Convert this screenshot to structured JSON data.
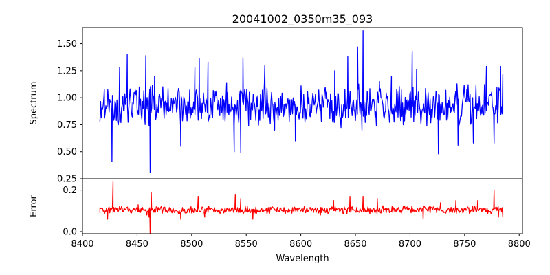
{
  "chart_data": {
    "type": "line",
    "title": "20041002_0350m35_093",
    "xlabel": "Wavelength",
    "xlim": [
      8400,
      8803
    ],
    "xticks": [
      8400,
      8450,
      8500,
      8550,
      8600,
      8650,
      8700,
      8750,
      8800
    ],
    "x_range": [
      8416,
      8785
    ],
    "panels": [
      {
        "name": "spectrum",
        "ylabel": "Spectrum",
        "ylim": [
          0.25,
          1.65
        ],
        "yticks": [
          0.25,
          0.5,
          0.75,
          1.0,
          1.25,
          1.5
        ],
        "ytick_labels": [
          "0.25",
          "0.50",
          "0.75",
          "1.00",
          "1.25",
          "1.50"
        ],
        "color": "#0000ff",
        "features": [
          {
            "x": 8416,
            "y": 0.79
          },
          {
            "x": 8420,
            "y": 1.08
          },
          {
            "x": 8427,
            "y": 0.41
          },
          {
            "x": 8434,
            "y": 1.28
          },
          {
            "x": 8441,
            "y": 1.4
          },
          {
            "x": 8446,
            "y": 0.82
          },
          {
            "x": 8458,
            "y": 1.39
          },
          {
            "x": 8461,
            "y": 0.74
          },
          {
            "x": 8462,
            "y": 0.31
          },
          {
            "x": 8466,
            "y": 1.2
          },
          {
            "x": 8490,
            "y": 0.55
          },
          {
            "x": 8503,
            "y": 1.28
          },
          {
            "x": 8507,
            "y": 1.36
          },
          {
            "x": 8515,
            "y": 1.33
          },
          {
            "x": 8532,
            "y": 1.14
          },
          {
            "x": 8539,
            "y": 0.5
          },
          {
            "x": 8545,
            "y": 0.49
          },
          {
            "x": 8547,
            "y": 1.37
          },
          {
            "x": 8567,
            "y": 1.3
          },
          {
            "x": 8576,
            "y": 0.7
          },
          {
            "x": 8595,
            "y": 0.6
          },
          {
            "x": 8631,
            "y": 1.25
          },
          {
            "x": 8643,
            "y": 1.38
          },
          {
            "x": 8652,
            "y": 1.47
          },
          {
            "x": 8656,
            "y": 0.7
          },
          {
            "x": 8657,
            "y": 1.62
          },
          {
            "x": 8672,
            "y": 1.15
          },
          {
            "x": 8683,
            "y": 1.2
          },
          {
            "x": 8702,
            "y": 1.43
          },
          {
            "x": 8706,
            "y": 1.26
          },
          {
            "x": 8726,
            "y": 0.48
          },
          {
            "x": 8744,
            "y": 0.56
          },
          {
            "x": 8758,
            "y": 0.58
          },
          {
            "x": 8770,
            "y": 1.29
          },
          {
            "x": 8777,
            "y": 0.58
          },
          {
            "x": 8783,
            "y": 1.29
          },
          {
            "x": 8785,
            "y": 1.22
          }
        ]
      },
      {
        "name": "error",
        "ylabel": "Error",
        "ylim": [
          -0.01,
          0.255
        ],
        "yticks": [
          0.0,
          0.2
        ],
        "ytick_labels": [
          "0.0",
          "0.2"
        ],
        "color": "#ff0000",
        "features": [
          {
            "x": 8416,
            "y": 0.09
          },
          {
            "x": 8423,
            "y": 0.06
          },
          {
            "x": 8428,
            "y": 0.24
          },
          {
            "x": 8445,
            "y": 0.09
          },
          {
            "x": 8451,
            "y": 0.13
          },
          {
            "x": 8459,
            "y": 0.08
          },
          {
            "x": 8461,
            "y": 0.07
          },
          {
            "x": 8462,
            "y": -0.01
          },
          {
            "x": 8463,
            "y": 0.19
          },
          {
            "x": 8490,
            "y": 0.06
          },
          {
            "x": 8506,
            "y": 0.17
          },
          {
            "x": 8512,
            "y": 0.07
          },
          {
            "x": 8540,
            "y": 0.18
          },
          {
            "x": 8545,
            "y": 0.16
          },
          {
            "x": 8556,
            "y": 0.06
          },
          {
            "x": 8618,
            "y": 0.08
          },
          {
            "x": 8630,
            "y": 0.15
          },
          {
            "x": 8645,
            "y": 0.17
          },
          {
            "x": 8657,
            "y": 0.17
          },
          {
            "x": 8670,
            "y": 0.16
          },
          {
            "x": 8712,
            "y": 0.06
          },
          {
            "x": 8728,
            "y": 0.14
          },
          {
            "x": 8742,
            "y": 0.15
          },
          {
            "x": 8762,
            "y": 0.15
          },
          {
            "x": 8777,
            "y": 0.2
          },
          {
            "x": 8781,
            "y": 0.07
          },
          {
            "x": 8785,
            "y": 0.07
          }
        ]
      }
    ]
  }
}
